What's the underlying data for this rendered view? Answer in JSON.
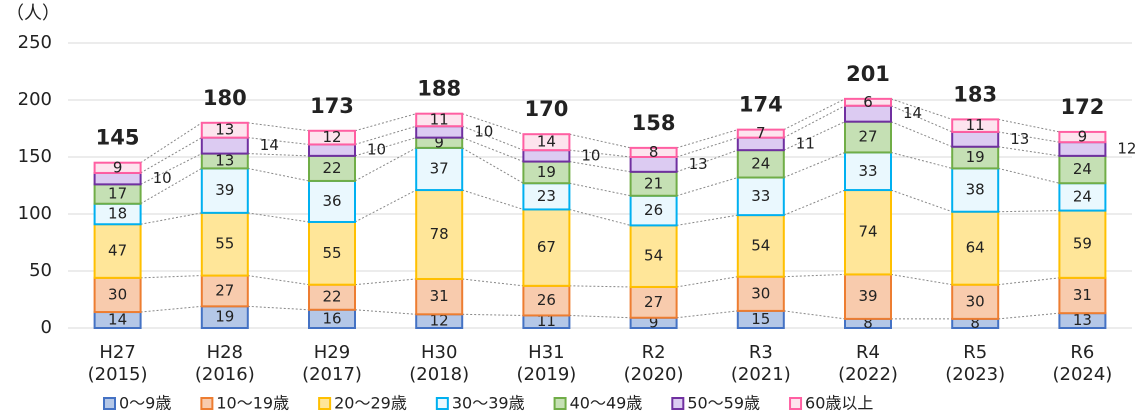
{
  "chart_data": {
    "type": "stacked_bar",
    "y_unit": "（人）",
    "categories": [
      [
        "H27",
        "(2015)"
      ],
      [
        "H28",
        "(2016)"
      ],
      [
        "H29",
        "(2017)"
      ],
      [
        "H30",
        "(2018)"
      ],
      [
        "H31",
        "(2019)"
      ],
      [
        "R2",
        "(2020)"
      ],
      [
        "R3",
        "(2021)"
      ],
      [
        "R4",
        "(2022)"
      ],
      [
        "R5",
        "(2023)"
      ],
      [
        "R6",
        "(2024)"
      ]
    ],
    "series": [
      {
        "name": "0～9歳",
        "color": "#b4c7e7",
        "border": "#4472c4",
        "values": [
          14,
          19,
          16,
          12,
          11,
          9,
          15,
          8,
          8,
          13
        ]
      },
      {
        "name": "10～19歳",
        "color": "#f8cbad",
        "border": "#ed7d31",
        "values": [
          30,
          27,
          22,
          31,
          26,
          27,
          30,
          39,
          30,
          31
        ]
      },
      {
        "name": "20～29歳",
        "color": "#ffe699",
        "border": "#ffc000",
        "values": [
          47,
          55,
          55,
          78,
          67,
          54,
          54,
          74,
          64,
          59
        ]
      },
      {
        "name": "30～39歳",
        "color": "#eaf8fe",
        "border": "#00b0f0",
        "values": [
          18,
          39,
          36,
          37,
          23,
          26,
          33,
          33,
          38,
          24
        ]
      },
      {
        "name": "40～49歳",
        "color": "#c5e0b4",
        "border": "#70ad47",
        "values": [
          17,
          13,
          22,
          9,
          19,
          21,
          24,
          27,
          19,
          24
        ]
      },
      {
        "name": "50～59歳",
        "color": "#dccbf2",
        "border": "#7030a0",
        "values": [
          10,
          14,
          10,
          10,
          10,
          13,
          11,
          14,
          13,
          12
        ]
      },
      {
        "name": "60歳以上",
        "color": "#fde4ee",
        "border": "#ff5fa2",
        "values": [
          9,
          13,
          12,
          11,
          14,
          8,
          7,
          6,
          11,
          9
        ]
      }
    ],
    "totals": [
      145,
      180,
      173,
      188,
      170,
      158,
      174,
      201,
      183,
      172
    ],
    "ylim": [
      0,
      250
    ],
    "yticks": [
      0,
      50,
      100,
      150,
      200,
      250
    ],
    "grid": true
  }
}
